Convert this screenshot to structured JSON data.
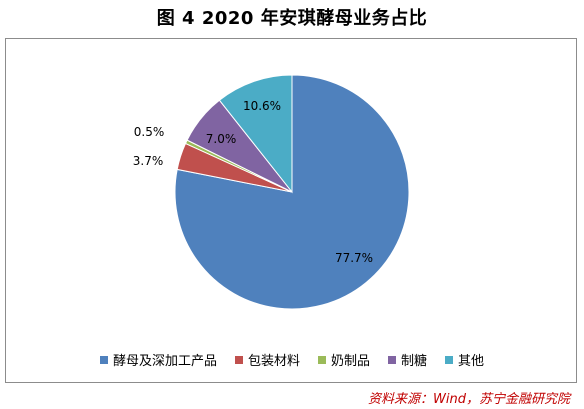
{
  "title": "图 4  2020 年安琪酵母业务占比",
  "source": "资料来源：Wind，苏宁金融研究院",
  "chart_data": {
    "type": "pie",
    "categories": [
      "酵母及深加工产品",
      "包装材料",
      "奶制品",
      "制糖",
      "其他"
    ],
    "values": [
      77.7,
      3.7,
      0.5,
      7.0,
      10.6
    ],
    "data_labels": [
      "77.7%",
      "3.7%",
      "0.5%",
      "7.0%",
      "10.6%"
    ],
    "colors": [
      "#4f81bd",
      "#c0504d",
      "#9bbb59",
      "#8064a2",
      "#4bacc6"
    ],
    "start_angle_deg": 0,
    "direction": "clockwise",
    "legend_position": "bottom"
  }
}
